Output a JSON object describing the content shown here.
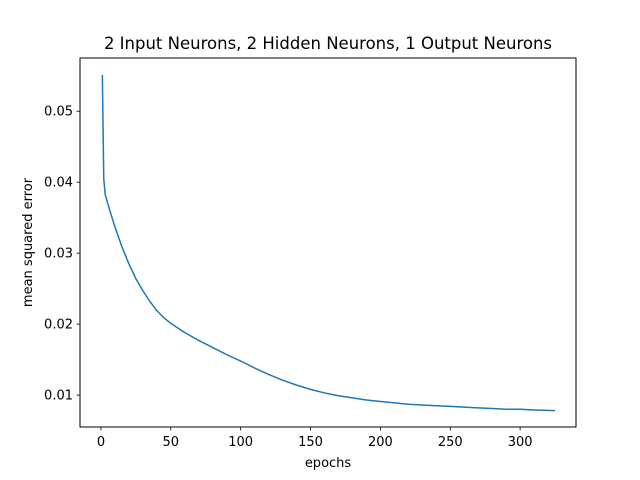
{
  "chart_data": {
    "type": "line",
    "title": "2 Input Neurons, 2 Hidden Neurons, 1 Output Neurons",
    "xlabel": "epochs",
    "ylabel": "mean squared error",
    "xlim": [
      -15,
      340
    ],
    "ylim": [
      0.0055,
      0.0575
    ],
    "xticks": [
      0,
      50,
      100,
      150,
      200,
      250,
      300
    ],
    "yticks": [
      0.01,
      0.02,
      0.03,
      0.04,
      0.05
    ],
    "ytick_labels": [
      "0.01",
      "0.02",
      "0.03",
      "0.04",
      "0.05"
    ],
    "grid": false,
    "series": [
      {
        "color": "#1f77b4",
        "x": [
          1,
          2,
          3,
          4,
          5,
          7,
          10,
          15,
          20,
          25,
          30,
          35,
          40,
          45,
          50,
          60,
          70,
          80,
          90,
          100,
          110,
          120,
          130,
          140,
          150,
          160,
          170,
          180,
          190,
          200,
          210,
          220,
          230,
          240,
          250,
          260,
          270,
          280,
          290,
          300,
          310,
          325
        ],
        "y": [
          0.0551,
          0.0405,
          0.0383,
          0.0376,
          0.0369,
          0.0356,
          0.0337,
          0.0309,
          0.0285,
          0.0264,
          0.0247,
          0.0232,
          0.0219,
          0.0209,
          0.0201,
          0.0188,
          0.0177,
          0.0167,
          0.0157,
          0.0148,
          0.0138,
          0.0129,
          0.0121,
          0.0114,
          0.0108,
          0.0103,
          0.0099,
          0.0096,
          0.0093,
          0.0091,
          0.0089,
          0.0087,
          0.0086,
          0.0085,
          0.0084,
          0.0083,
          0.0082,
          0.0081,
          0.008,
          0.008,
          0.0079,
          0.0078
        ]
      }
    ]
  }
}
